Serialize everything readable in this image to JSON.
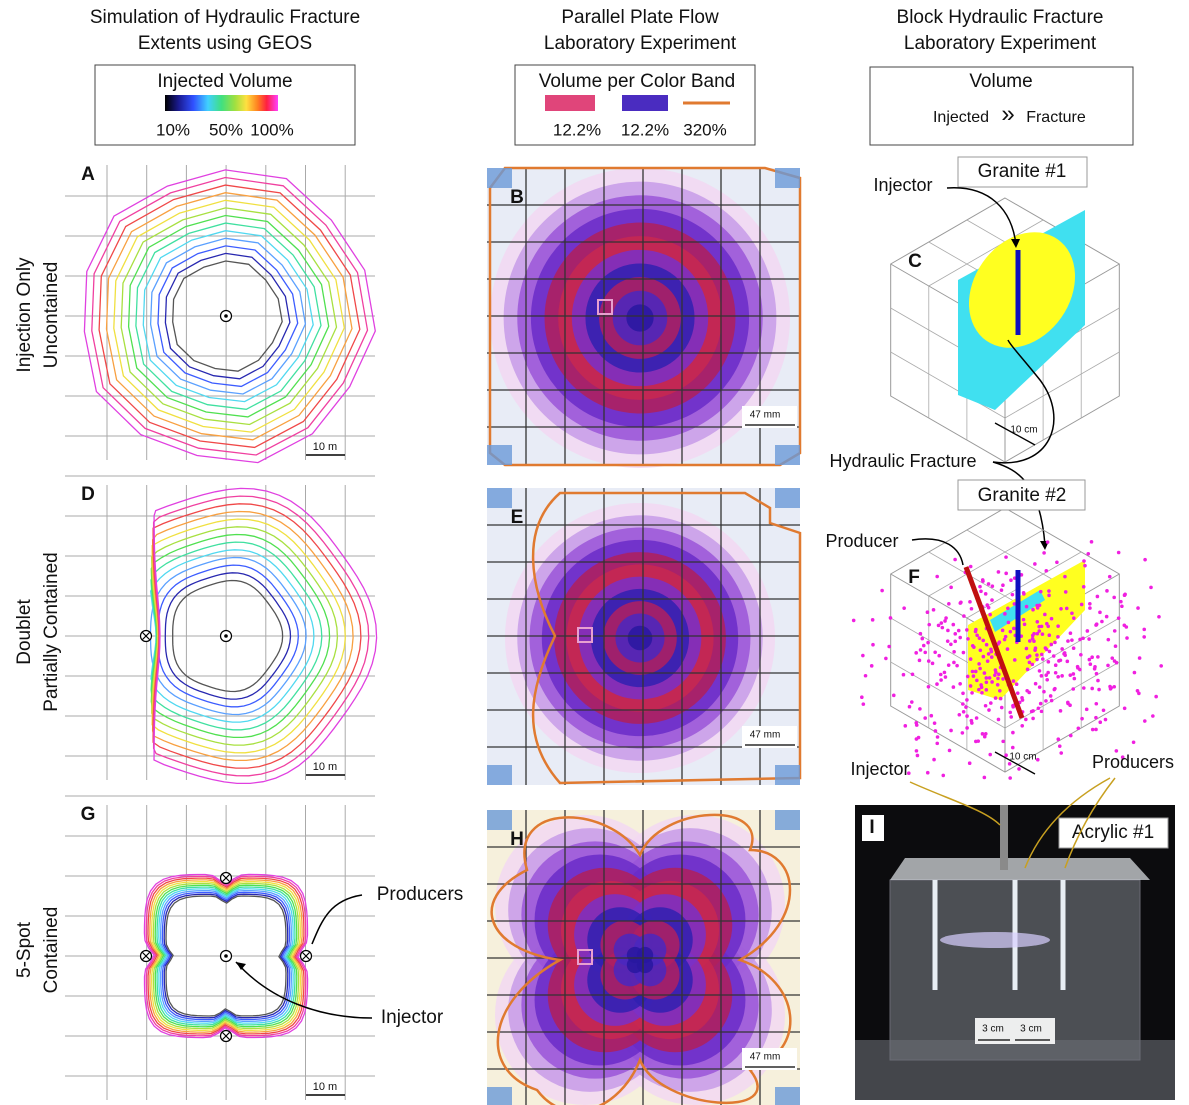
{
  "columns": [
    {
      "title": [
        "Simulation of Hydraulic Fracture",
        "Extents using GEOS"
      ]
    },
    {
      "title": [
        "Parallel Plate Flow",
        "Laboratory Experiment"
      ]
    },
    {
      "title": [
        "Block Hydraulic Fracture",
        "Laboratory Experiment"
      ]
    }
  ],
  "legends": [
    {
      "title": "Injected Volume",
      "labels": [
        "10%",
        "50%",
        "100%"
      ]
    },
    {
      "title": "Volume per Color Band",
      "labels": [
        "12.2%",
        "12.2%",
        "320%"
      ]
    },
    {
      "title": "Volume",
      "labels": [
        "Injected",
        "»",
        "Fracture"
      ]
    }
  ],
  "rows": [
    [
      "Injection Only",
      "Uncontained"
    ],
    [
      "Doublet",
      "Partially Contained"
    ],
    [
      "5-Spot",
      "Contained"
    ]
  ],
  "panels": [
    {
      "label": "A",
      "scale_bars": [
        "10 m"
      ]
    },
    {
      "label": "B",
      "scale_bars": [
        "47 mm"
      ]
    },
    {
      "label": "C",
      "scale_bars": [
        "10 cm"
      ],
      "sample": "Granite #1",
      "annotations": [
        "Injector",
        "Hydraulic Fracture"
      ]
    },
    {
      "label": "D",
      "scale_bars": [
        "10 m"
      ]
    },
    {
      "label": "E",
      "scale_bars": [
        "47 mm"
      ]
    },
    {
      "label": "F",
      "scale_bars": [
        "10 cm"
      ],
      "sample": "Granite #2",
      "annotations": [
        "Producer"
      ]
    },
    {
      "label": "G",
      "scale_bars": [
        "10 m"
      ],
      "annotations": [
        "Producers",
        "Injector"
      ]
    },
    {
      "label": "H",
      "scale_bars": [
        "47 mm"
      ]
    },
    {
      "label": "I",
      "scale_bars": [
        "3 cm",
        "3 cm"
      ],
      "sample": "Acrylic #1",
      "annotations": [
        "Injector",
        "Producers"
      ]
    }
  ]
}
